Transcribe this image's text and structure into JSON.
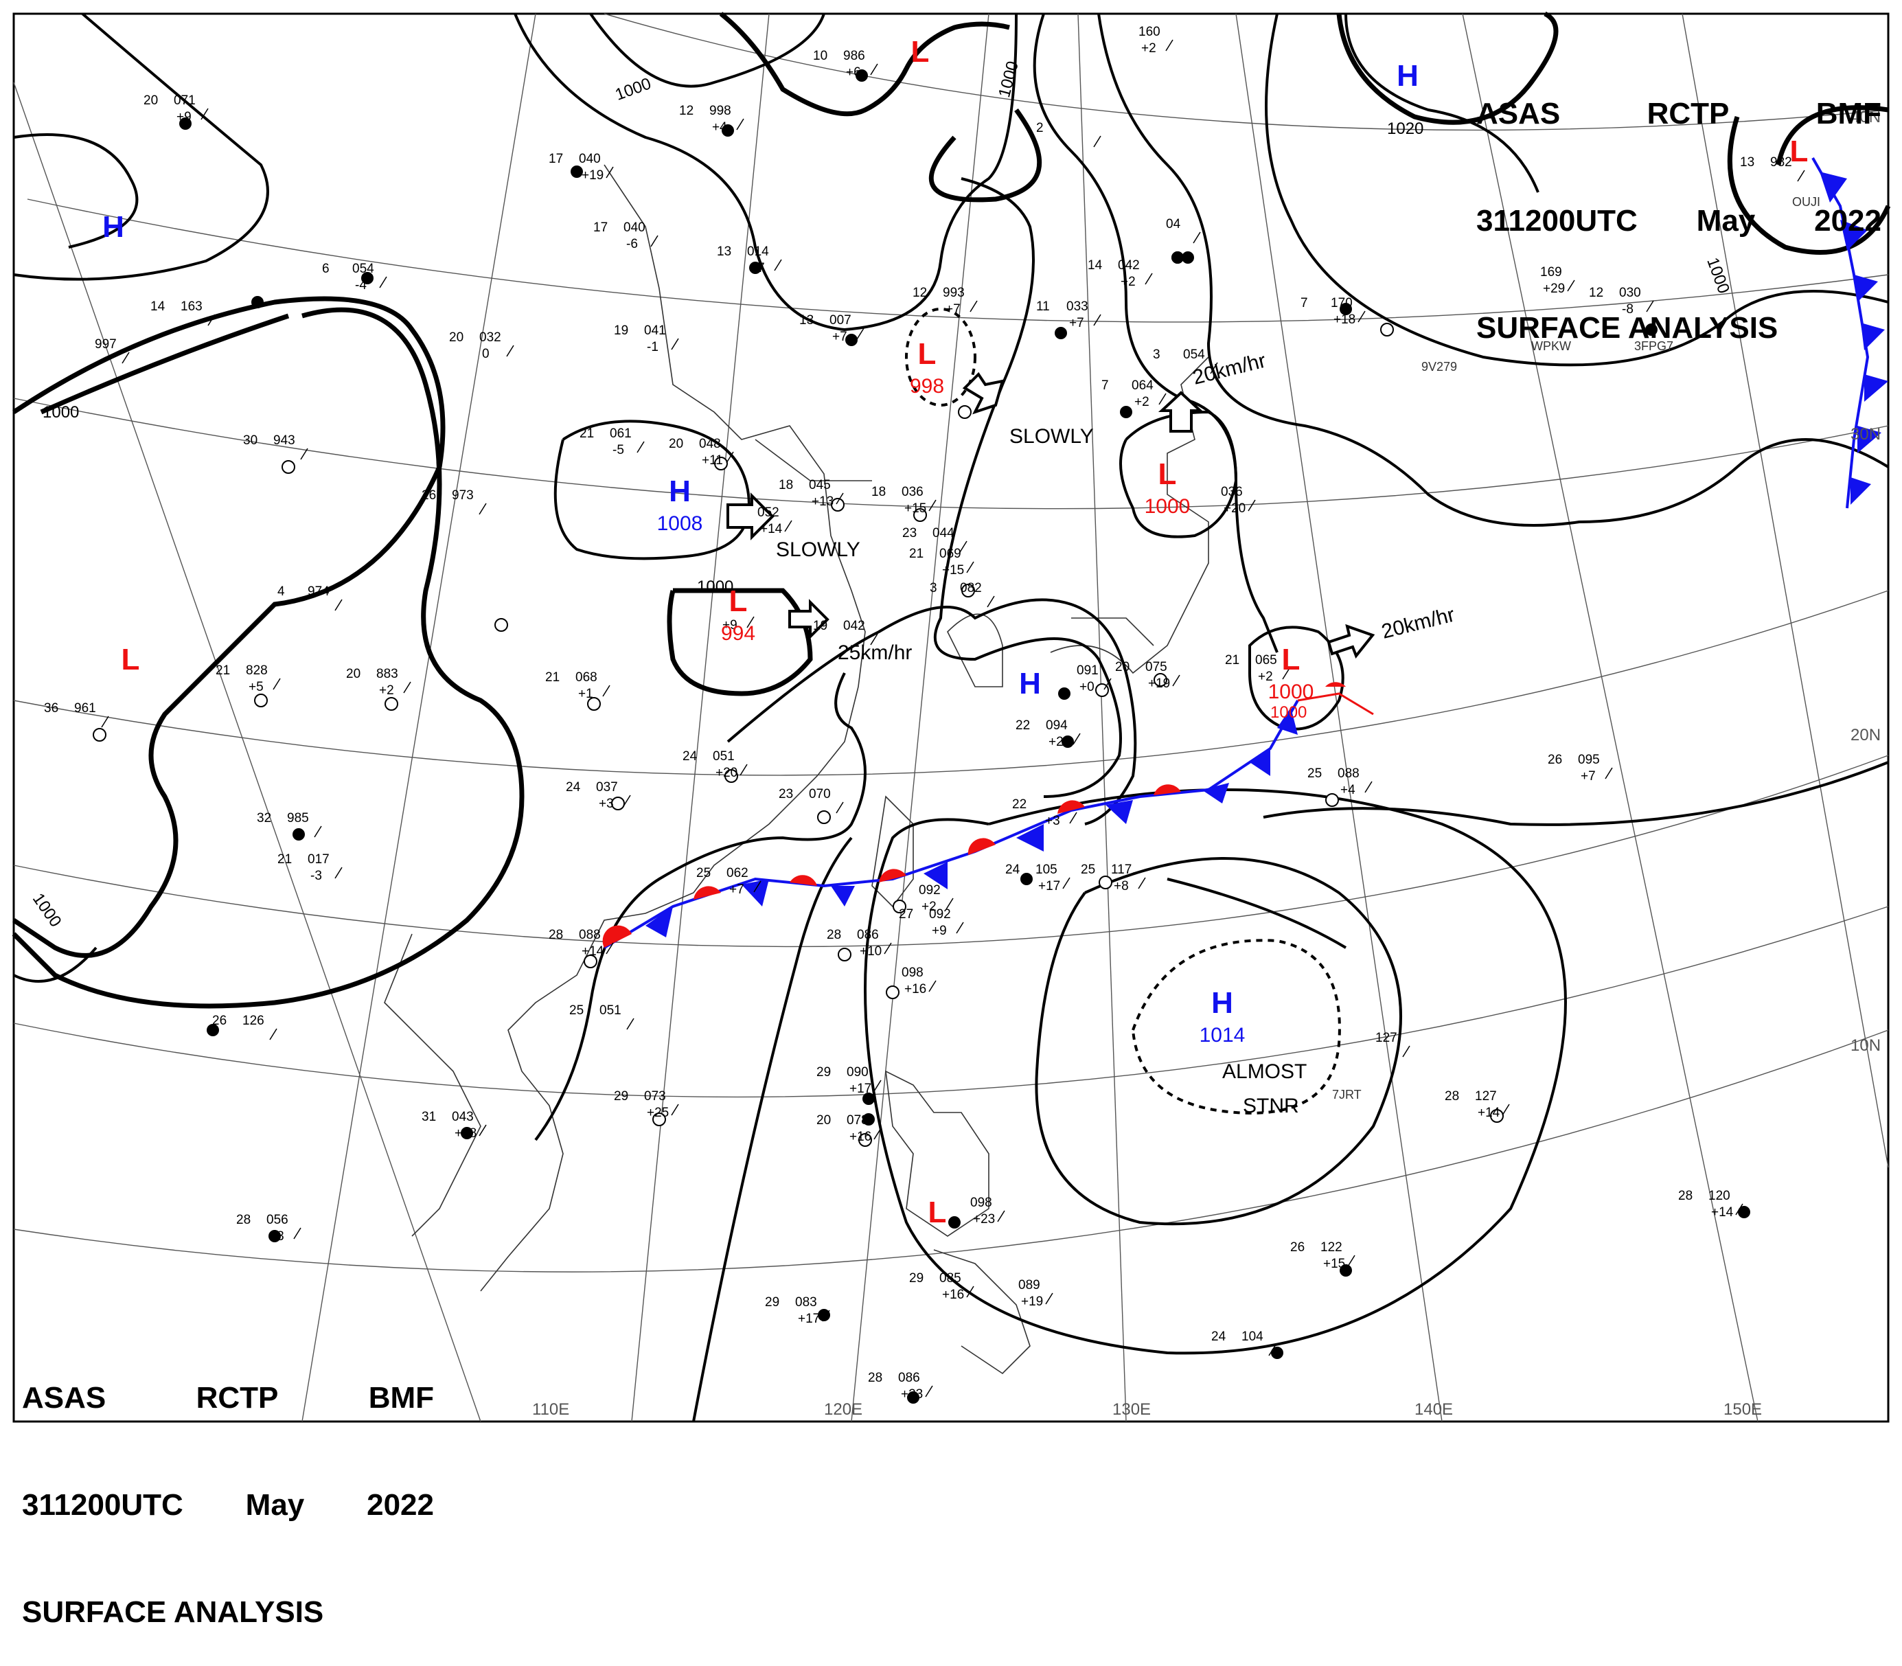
{
  "header": {
    "issuer": "ASAS",
    "station": "RCTP",
    "code": "BMF",
    "time": "311200UTC",
    "month": "May",
    "year": "2022",
    "product": "SURFACE ANALYSIS"
  },
  "colors": {
    "low": "#ee1111",
    "high": "#1111ee",
    "isobar": "#000000",
    "front_warm": "#ee1111",
    "front_cold": "#1111ee"
  },
  "grid_labels": {
    "lon": [
      "110E",
      "120E",
      "130E",
      "140E",
      "150E"
    ],
    "lat": [
      "40N",
      "30N",
      "20N",
      "10N"
    ]
  },
  "isobar_labels": [
    "1000",
    "1000",
    "1000",
    "1000",
    "1000",
    "1000",
    "1000",
    "1020"
  ],
  "pressure_centers": [
    {
      "type": "H",
      "value": ""
    },
    {
      "type": "H",
      "value": ""
    },
    {
      "type": "H",
      "value": "1008"
    },
    {
      "type": "L",
      "value": "994"
    },
    {
      "type": "L",
      "value": ""
    },
    {
      "type": "L",
      "value": "998"
    },
    {
      "type": "L",
      "value": "1000"
    },
    {
      "type": "L",
      "value": "1000"
    },
    {
      "type": "H",
      "value": ""
    },
    {
      "type": "H",
      "value": "1014"
    },
    {
      "type": "L",
      "value": ""
    },
    {
      "type": "L",
      "value": ""
    },
    {
      "type": "L",
      "value": ""
    }
  ],
  "motion_labels": [
    "SLOWLY",
    "25km/hr",
    "SLOWLY",
    "20km/hr",
    "20km/hr",
    "ALMOST",
    "STNR"
  ],
  "stations": [
    {
      "t": "20",
      "p": "071",
      "d": "+9"
    },
    {
      "t": "17",
      "p": "040",
      "d": "+19"
    },
    {
      "t": "17",
      "p": "040",
      "d": "-6"
    },
    {
      "t": "12",
      "p": "998",
      "d": "+4"
    },
    {
      "t": "10",
      "p": "986",
      "d": "+6"
    },
    {
      "t": "14",
      "p": "163",
      "d": ""
    },
    {
      "t": "",
      "p": "997",
      "d": ""
    },
    {
      "t": "6",
      "p": "054",
      "d": "-4"
    },
    {
      "t": "13",
      "p": "014",
      "d": "+7"
    },
    {
      "t": "19",
      "p": "041",
      "d": "-1"
    },
    {
      "t": "20",
      "p": "032",
      "d": "0"
    },
    {
      "t": "13",
      "p": "007",
      "d": "+7"
    },
    {
      "t": "12",
      "p": "993",
      "d": "+7"
    },
    {
      "t": "30",
      "p": "943",
      "d": ""
    },
    {
      "t": "21",
      "p": "061",
      "d": "-5"
    },
    {
      "t": "20",
      "p": "048",
      "d": "+11"
    },
    {
      "t": "18",
      "p": "045",
      "d": "+13"
    },
    {
      "t": "18",
      "p": "036",
      "d": "+15"
    },
    {
      "t": "26",
      "p": "973",
      "d": ""
    },
    {
      "t": "",
      "p": "052",
      "d": "+14"
    },
    {
      "t": "23",
      "p": "044",
      "d": ""
    },
    {
      "t": "21",
      "p": "069",
      "d": "+15"
    },
    {
      "t": "3",
      "p": "082",
      "d": ""
    },
    {
      "t": "4",
      "p": "974",
      "d": ""
    },
    {
      "t": "",
      "p": "",
      "d": "+9"
    },
    {
      "t": "19",
      "p": "042",
      "d": ""
    },
    {
      "t": "21",
      "p": "828",
      "d": "+5"
    },
    {
      "t": "20",
      "p": "883",
      "d": "+2"
    },
    {
      "t": "21",
      "p": "068",
      "d": "+1"
    },
    {
      "t": "36",
      "p": "961",
      "d": ""
    },
    {
      "t": "24",
      "p": "051",
      "d": "+20"
    },
    {
      "t": "24",
      "p": "037",
      "d": "+3"
    },
    {
      "t": "23",
      "p": "070",
      "d": ""
    },
    {
      "t": "32",
      "p": "985",
      "d": ""
    },
    {
      "t": "21",
      "p": "017",
      "d": "-3"
    },
    {
      "t": "25",
      "p": "062",
      "d": "+7"
    },
    {
      "t": "28",
      "p": "088",
      "d": "+14"
    },
    {
      "t": "",
      "p": "092",
      "d": "+2"
    },
    {
      "t": "27",
      "p": "092",
      "d": "+9"
    },
    {
      "t": "28",
      "p": "086",
      "d": "+10"
    },
    {
      "t": "",
      "p": "098",
      "d": "+16"
    },
    {
      "t": "25",
      "p": "051",
      "d": ""
    },
    {
      "t": "26",
      "p": "126",
      "d": ""
    },
    {
      "t": "29",
      "p": "073",
      "d": "+25"
    },
    {
      "t": "31",
      "p": "043",
      "d": "+18"
    },
    {
      "t": "28",
      "p": "056",
      "d": "+3"
    },
    {
      "t": "29",
      "p": "090",
      "d": "+17"
    },
    {
      "t": "20",
      "p": "078",
      "d": "+16"
    },
    {
      "t": "",
      "p": "098",
      "d": "+23"
    },
    {
      "t": "29",
      "p": "083",
      "d": "+17"
    },
    {
      "t": "29",
      "p": "085",
      "d": "+16"
    },
    {
      "t": "",
      "p": "089",
      "d": "+19"
    },
    {
      "t": "28",
      "p": "086",
      "d": "+23"
    },
    {
      "t": "14",
      "p": "042",
      "d": "+2"
    },
    {
      "t": "11",
      "p": "033",
      "d": "+7"
    },
    {
      "t": "7",
      "p": "064",
      "d": "+2"
    },
    {
      "t": "3",
      "p": "054",
      "d": ""
    },
    {
      "t": "",
      "p": "036",
      "d": "+20"
    },
    {
      "t": "20",
      "p": "075",
      "d": "+19"
    },
    {
      "t": "21",
      "p": "065",
      "d": "+2"
    },
    {
      "t": "",
      "p": "091",
      "d": "+0"
    },
    {
      "t": "22",
      "p": "094",
      "d": "+24"
    },
    {
      "t": "22",
      "p": "",
      "d": "+3"
    },
    {
      "t": "24",
      "p": "105",
      "d": "+17"
    },
    {
      "t": "25",
      "p": "117",
      "d": "+8"
    },
    {
      "t": "25",
      "p": "088",
      "d": "+4"
    },
    {
      "t": "26",
      "p": "095",
      "d": "+7"
    },
    {
      "t": "",
      "p": "127",
      "d": ""
    },
    {
      "t": "28",
      "p": "127",
      "d": "+14"
    },
    {
      "t": "28",
      "p": "120",
      "d": "+14"
    },
    {
      "t": "26",
      "p": "122",
      "d": "+15"
    },
    {
      "t": "24",
      "p": "104",
      "d": ""
    },
    {
      "t": "7",
      "p": "170",
      "d": "+18"
    },
    {
      "t": "",
      "p": "169",
      "d": "+29"
    },
    {
      "t": "12",
      "p": "030",
      "d": "-8"
    },
    {
      "t": "2",
      "p": "",
      "d": ""
    },
    {
      "t": "",
      "p": "160",
      "d": "+2"
    },
    {
      "t": "",
      "p": "04",
      "d": ""
    },
    {
      "t": "13",
      "p": "982",
      "d": ""
    }
  ],
  "misc_labels": [
    "9V279",
    "WPKW",
    "3FPG7",
    "OUJI",
    "7JRT"
  ]
}
